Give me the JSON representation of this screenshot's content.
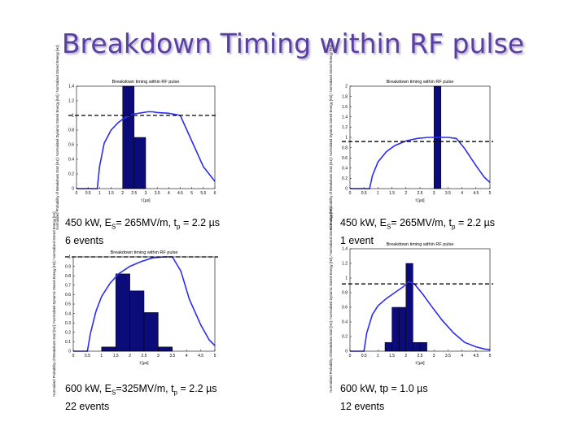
{
  "slide": {
    "title": "Breakdown Timing within RF pulse"
  },
  "captions": [
    {
      "line1_pre": "450 kW, E",
      "line1_sub1": "S",
      "line1_mid": "= 265MV/m, t",
      "line1_sub2": "p",
      "line1_post": " = 2.2 µs",
      "line2": "6 events"
    },
    {
      "line1_pre": "450 kW, E",
      "line1_sub1": "S",
      "line1_mid": "= 265MV/m, t",
      "line1_sub2": "p",
      "line1_post": " = 2.2 µs",
      "line2": "1 event"
    },
    {
      "line1_pre": "600 kW, E",
      "line1_sub1": "S",
      "line1_mid": "=325MV/m, t",
      "line1_sub2": "p",
      "line1_post": " = 2.2 µs",
      "line2": "22 events"
    },
    {
      "line1_pre": "600 kW, tp = 1.0 µs",
      "line1_sub1": "",
      "line1_mid": "",
      "line1_sub2": "",
      "line1_post": "",
      "line2": "12 events"
    }
  ],
  "colors": {
    "bar": "#0b0b7a",
    "curve": "#2d2df0",
    "threshold": "#000000",
    "title": "#5b3fa0"
  },
  "chart_data": [
    {
      "type": "bar",
      "title": "Breakdown timing within RF pulse",
      "xlabel": "t [µs]",
      "ylabel": "Normalized Probability of Breakdown Start [Hz] / Normalized Dynamic Stored Energy [Hz] / Normalized Stored Energy [Hz]",
      "xlim": [
        0,
        6
      ],
      "ylim": [
        0,
        1.4
      ],
      "xticks": [
        "0",
        "0.5",
        "1",
        "1.5",
        "2",
        "2.5",
        "3",
        "3.5",
        "4",
        "4.5",
        "5",
        "5.5",
        "6"
      ],
      "yticks": [
        "0",
        "0.2",
        "0.4",
        "0.6",
        "0.8",
        "1",
        "1.2",
        "1.4"
      ],
      "bin_width": 0.5,
      "bars": [
        {
          "x": 2.25,
          "value": 1.4
        },
        {
          "x": 2.75,
          "value": 0.7
        }
      ],
      "threshold": 1.0,
      "pulse": {
        "x": [
          0,
          0.9,
          1.0,
          1.2,
          1.5,
          1.8,
          2.1,
          2.5,
          3.1,
          3.3,
          3.5,
          4.0,
          4.5,
          5.0,
          5.5,
          6.0
        ],
        "y": [
          0,
          0,
          0.3,
          0.62,
          0.8,
          0.9,
          0.97,
          1.02,
          1.05,
          1.05,
          1.04,
          1.03,
          1.0,
          0.65,
          0.3,
          0.1
        ]
      }
    },
    {
      "type": "bar",
      "title": "Breakdown timing within RF pulse",
      "xlabel": "t [µs]",
      "ylabel": "Normalized Probability of Breakdown Start [Hz] / Normalized Dynamic Stored Energy [Hz] / Normalized Stored Energy [Hz]",
      "xlim": [
        0,
        5
      ],
      "ylim": [
        0,
        2
      ],
      "xticks": [
        "0",
        "0.5",
        "1",
        "1.5",
        "2",
        "2.5",
        "3",
        "3.5",
        "4",
        "4.5",
        "5"
      ],
      "yticks": [
        "0",
        "0.2",
        "0.4",
        "0.6",
        "0.8",
        "1",
        "1.2",
        "1.4",
        "1.6",
        "1.8",
        "2"
      ],
      "bin_width": 0.25,
      "bars": [
        {
          "x": 3.125,
          "value": 2.0
        }
      ],
      "threshold": 0.92,
      "pulse": {
        "x": [
          0,
          0.7,
          0.8,
          1.0,
          1.3,
          1.6,
          2.0,
          2.4,
          2.8,
          3.2,
          3.5,
          3.8,
          4.1,
          4.5,
          4.8,
          5.0
        ],
        "y": [
          0,
          0,
          0.25,
          0.52,
          0.72,
          0.84,
          0.93,
          0.98,
          1.0,
          1.0,
          1.0,
          0.98,
          0.78,
          0.45,
          0.22,
          0.12
        ]
      }
    },
    {
      "type": "bar",
      "title": "Breakdown timing within RF pulse",
      "xlabel": "t [µs]",
      "ylabel": "Normalized Probability of Breakdown Start [Hz] / Normalized Dynamic Stored Energy [Hz] / Normalized Stored Energy [Hz]",
      "xlim": [
        0,
        5
      ],
      "ylim": [
        0,
        1
      ],
      "xticks": [
        "0",
        "0.5",
        "1",
        "1.5",
        "2",
        "2.5",
        "3",
        "3.5",
        "4",
        "4.5",
        "5"
      ],
      "yticks": [
        "0",
        "0.1",
        "0.2",
        "0.3",
        "0.4",
        "0.5",
        "0.6",
        "0.7",
        "0.8",
        "0.9",
        "1"
      ],
      "bin_width": 0.5,
      "bars": [
        {
          "x": 1.25,
          "value": 0.045
        },
        {
          "x": 1.75,
          "value": 0.82
        },
        {
          "x": 2.25,
          "value": 0.64
        },
        {
          "x": 2.75,
          "value": 0.41
        },
        {
          "x": 3.25,
          "value": 0.045
        }
      ],
      "threshold": 1.0,
      "pulse": {
        "x": [
          0,
          0.5,
          0.6,
          0.8,
          1.0,
          1.3,
          1.6,
          2.0,
          2.4,
          2.8,
          3.2,
          3.5,
          3.8,
          4.1,
          4.5,
          4.8,
          5.0
        ],
        "y": [
          0,
          0,
          0.18,
          0.42,
          0.58,
          0.72,
          0.82,
          0.9,
          0.95,
          0.99,
          1.0,
          1.0,
          0.85,
          0.55,
          0.28,
          0.12,
          0.06
        ]
      }
    },
    {
      "type": "bar",
      "title": "Breakdown timing within RF pulse",
      "xlabel": "t [µs]",
      "ylabel": "Normalized Probability of Breakdown Start [Hz] / Normalized Dynamic Stored Energy [Hz] / Normalized Stored Energy [Hz]",
      "xlim": [
        0,
        5
      ],
      "ylim": [
        0,
        1.4
      ],
      "xticks": [
        "0",
        "0.5",
        "1",
        "1.5",
        "2",
        "2.5",
        "3",
        "3.5",
        "4",
        "4.5",
        "5"
      ],
      "yticks": [
        "0",
        "0.2",
        "0.4",
        "0.6",
        "0.8",
        "1",
        "1.2",
        "1.4"
      ],
      "bin_width": 0.25,
      "bars": [
        {
          "x": 1.375,
          "value": 0.12
        },
        {
          "x": 1.625,
          "value": 0.6
        },
        {
          "x": 1.875,
          "value": 0.6
        },
        {
          "x": 2.125,
          "value": 1.2
        },
        {
          "x": 2.375,
          "value": 0.12
        },
        {
          "x": 2.625,
          "value": 0.12
        }
      ],
      "threshold": 0.92,
      "pulse": {
        "x": [
          0,
          0.5,
          0.6,
          0.8,
          1.0,
          1.3,
          1.6,
          1.9,
          2.1,
          2.3,
          2.6,
          2.9,
          3.3,
          3.7,
          4.1,
          4.5,
          4.8,
          5.0
        ],
        "y": [
          0,
          0,
          0.25,
          0.5,
          0.62,
          0.72,
          0.8,
          0.88,
          0.95,
          0.92,
          0.78,
          0.62,
          0.42,
          0.25,
          0.12,
          0.06,
          0.03,
          0.02
        ]
      }
    }
  ]
}
